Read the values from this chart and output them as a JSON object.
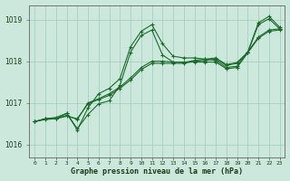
{
  "xlabel": "Graphe pression niveau de la mer (hPa)",
  "bg_color": "#cce8dc",
  "grid_color": "#a8cfc0",
  "line_color": "#1a6b2a",
  "ylim": [
    1015.7,
    1019.35
  ],
  "xlim": [
    -0.5,
    23.5
  ],
  "yticks": [
    1016,
    1017,
    1018,
    1019
  ],
  "xtick_labels": [
    "0",
    "1",
    "2",
    "3",
    "4",
    "5",
    "6",
    "7",
    "8",
    "9",
    "10",
    "11",
    "12",
    "13",
    "14",
    "15",
    "16",
    "17",
    "18",
    "19",
    "20",
    "21",
    "22",
    "23"
  ],
  "series": [
    [
      1016.55,
      1016.62,
      1016.62,
      1016.68,
      1016.62,
      1016.98,
      1017.08,
      1017.18,
      1017.35,
      1017.55,
      1017.8,
      1017.95,
      1017.95,
      1017.95,
      1017.95,
      1018.0,
      1018.02,
      1018.05,
      1017.9,
      1017.95,
      1018.2,
      1018.55,
      1018.72,
      1018.75
    ],
    [
      1016.55,
      1016.6,
      1016.62,
      1016.7,
      1016.6,
      1017.0,
      1017.1,
      1017.22,
      1017.38,
      1017.6,
      1017.85,
      1018.0,
      1018.0,
      1017.98,
      1017.97,
      1018.02,
      1018.05,
      1018.08,
      1017.92,
      1017.97,
      1018.22,
      1018.58,
      1018.75,
      1018.78
    ],
    [
      1016.55,
      1016.62,
      1016.62,
      1016.75,
      1016.38,
      1016.72,
      1016.98,
      1017.05,
      1017.42,
      1018.22,
      1018.62,
      1018.75,
      1018.15,
      1017.98,
      1017.98,
      1017.98,
      1017.98,
      1017.98,
      1017.82,
      1017.85,
      1018.2,
      1018.88,
      1019.02,
      1018.78
    ],
    [
      1016.55,
      1016.62,
      1016.65,
      1016.75,
      1016.35,
      1016.88,
      1017.22,
      1017.35,
      1017.58,
      1018.35,
      1018.72,
      1018.88,
      1018.42,
      1018.12,
      1018.08,
      1018.08,
      1018.05,
      1018.02,
      1017.85,
      1017.88,
      1018.22,
      1018.92,
      1019.08,
      1018.82
    ]
  ]
}
